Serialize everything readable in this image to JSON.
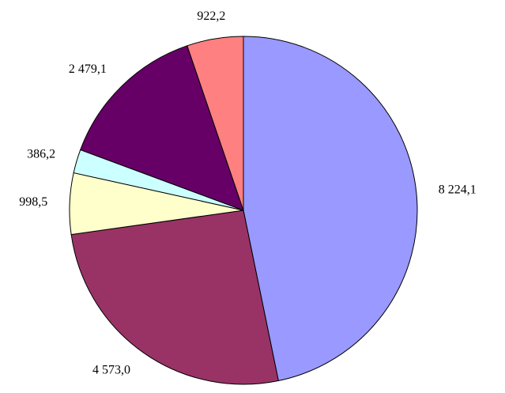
{
  "chart_data": {
    "type": "pie",
    "values": [
      8224.1,
      4573.0,
      998.5,
      386.2,
      2479.1,
      922.2
    ],
    "value_labels": [
      "8 224,1",
      "4 573,0",
      "998,5",
      "386,2",
      "2 479,1",
      "922,2"
    ],
    "colors": [
      "#9999ff",
      "#993366",
      "#ffffcc",
      "#ccffff",
      "#660066",
      "#ff8080"
    ]
  }
}
